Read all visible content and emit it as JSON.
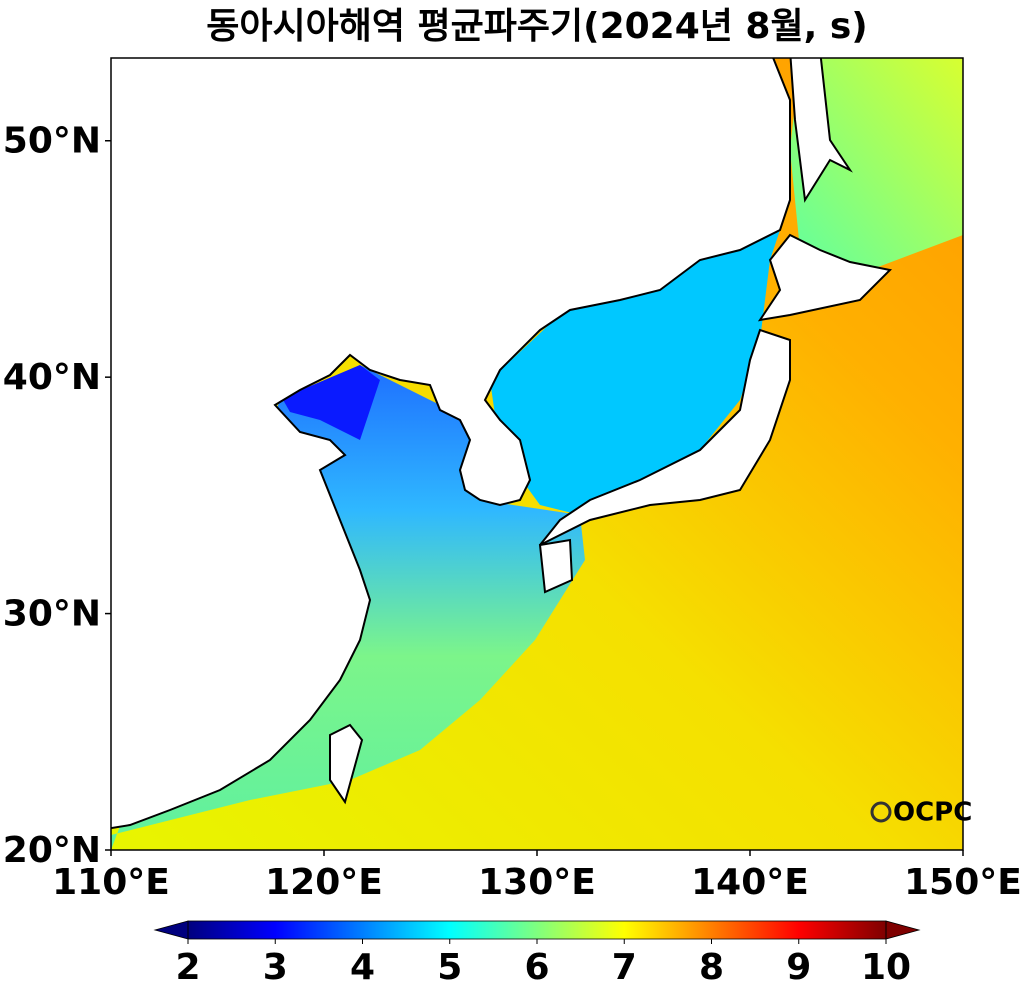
{
  "chart_data": {
    "type": "map",
    "title": "동아시아해역 평균파주기(2024년 8월, s)",
    "xlim": [
      110,
      150
    ],
    "ylim": [
      20,
      53.5
    ],
    "xticks": [
      {
        "value": 110,
        "label": "110°E"
      },
      {
        "value": 120,
        "label": "120°E"
      },
      {
        "value": 130,
        "label": "130°E"
      },
      {
        "value": 140,
        "label": "140°E"
      },
      {
        "value": 150,
        "label": "150°E"
      }
    ],
    "yticks": [
      {
        "value": 20,
        "label": "20°N"
      },
      {
        "value": 30,
        "label": "30°N"
      },
      {
        "value": 40,
        "label": "40°N"
      },
      {
        "value": 50,
        "label": "50°N"
      }
    ],
    "colorbar": {
      "range": [
        2,
        10
      ],
      "ticks": [
        2,
        3,
        4,
        5,
        6,
        7,
        8,
        9,
        10
      ],
      "colormap": "jet",
      "extend": "both"
    },
    "logo": "OCPC"
  }
}
